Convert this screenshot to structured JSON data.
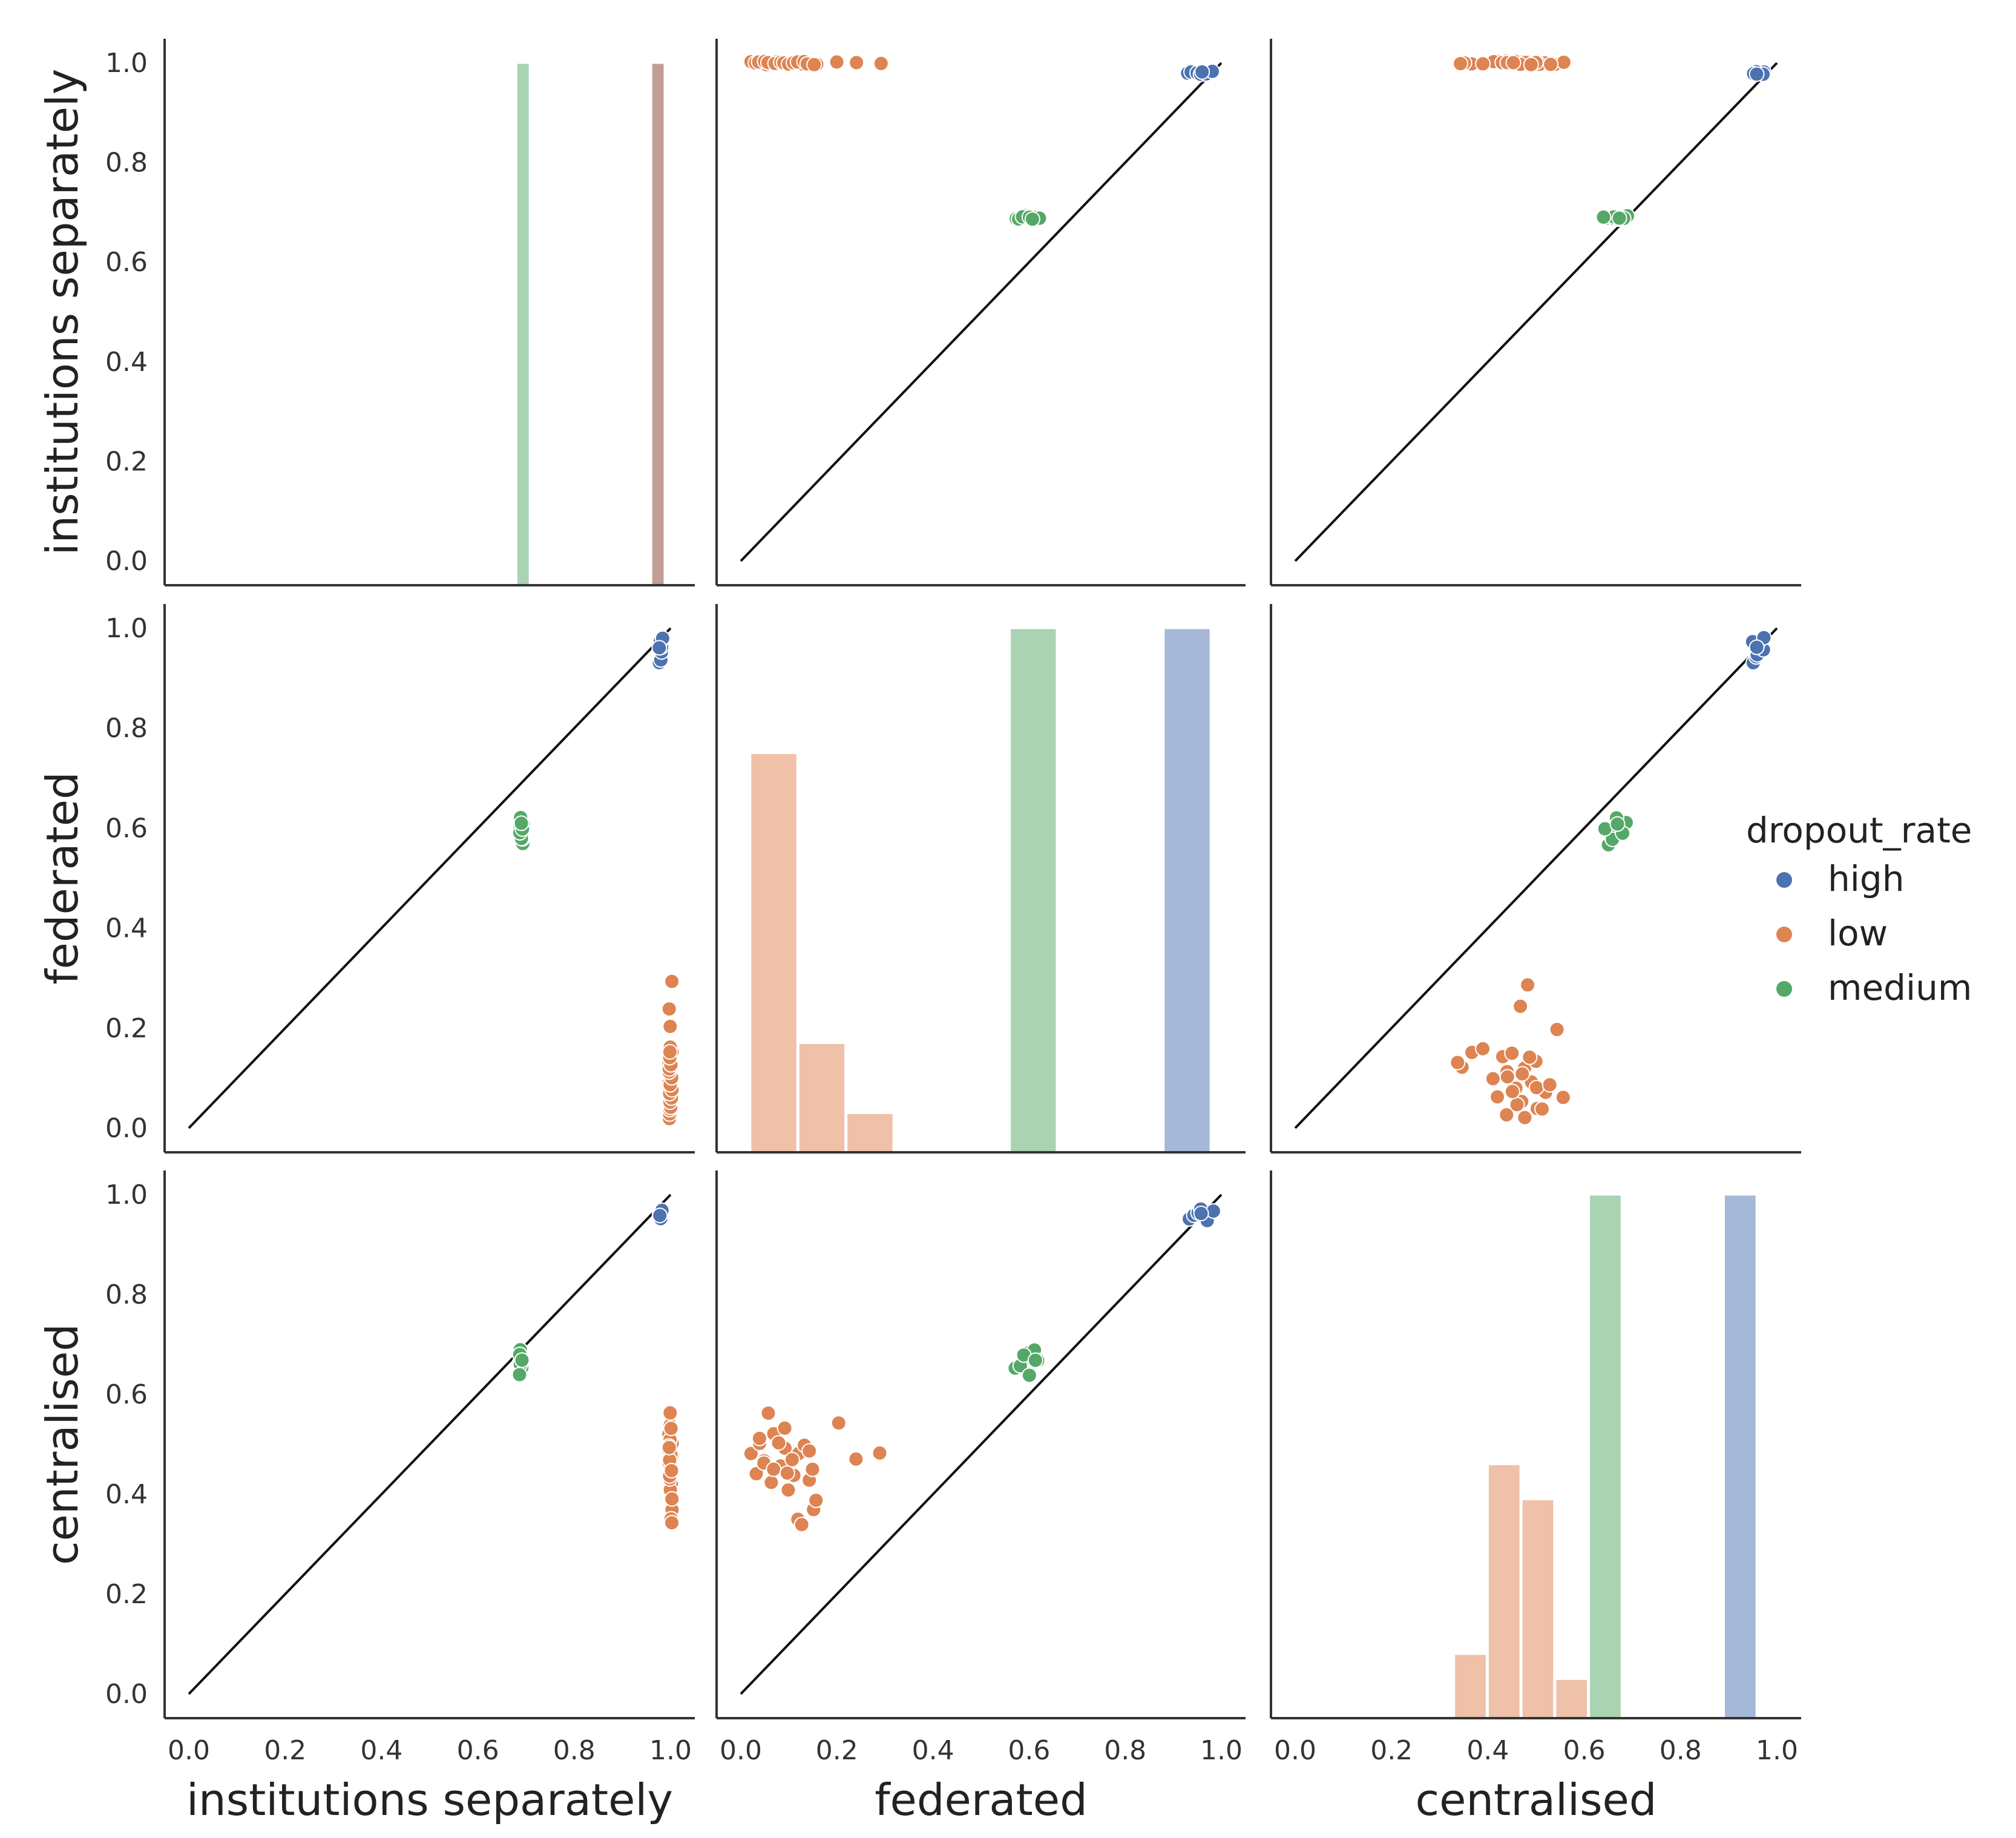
{
  "chart_data": {
    "type": "pairplot",
    "variables": [
      "institutions separately",
      "federated",
      "centralised"
    ],
    "axis_range": [
      0.0,
      1.0
    ],
    "ticks": [
      "0.0",
      "0.2",
      "0.4",
      "0.6",
      "0.8",
      "1.0"
    ],
    "legend": {
      "title": "dropout_rate",
      "placement": "center-right",
      "entries": [
        {
          "label": "high",
          "color": "#4c72b0"
        },
        {
          "label": "low",
          "color": "#dd8452"
        },
        {
          "label": "medium",
          "color": "#55a868"
        }
      ]
    },
    "reference_line": "y = x (black diagonal)",
    "series": {
      "high": {
        "institutions separately": [
          0.98,
          0.98,
          0.98,
          0.98,
          0.98,
          0.98,
          0.98,
          0.98
        ],
        "federated": [
          0.93,
          0.94,
          0.95,
          0.96,
          0.97,
          0.97,
          0.98,
          0.96
        ],
        "centralised": [
          0.95,
          0.96,
          0.96,
          0.97,
          0.96,
          0.95,
          0.97,
          0.96
        ]
      },
      "low": {
        "institutions separately": [
          1.0,
          1.0,
          1.0,
          1.0,
          1.0,
          1.0,
          1.0,
          1.0,
          1.0,
          1.0,
          1.0,
          1.0,
          1.0,
          1.0,
          1.0,
          1.0,
          1.0,
          1.0,
          1.0,
          1.0,
          1.0,
          1.0,
          1.0,
          1.0,
          1.0,
          1.0,
          1.0,
          1.0,
          1.0,
          1.0
        ],
        "federated": [
          0.02,
          0.03,
          0.04,
          0.05,
          0.06,
          0.07,
          0.08,
          0.09,
          0.1,
          0.11,
          0.12,
          0.13,
          0.14,
          0.15,
          0.16,
          0.2,
          0.24,
          0.29,
          0.04,
          0.05,
          0.06,
          0.07,
          0.08,
          0.09,
          0.1,
          0.11,
          0.12,
          0.13,
          0.14,
          0.15
        ],
        "centralised": [
          0.48,
          0.44,
          0.5,
          0.47,
          0.42,
          0.52,
          0.46,
          0.49,
          0.41,
          0.44,
          0.48,
          0.5,
          0.43,
          0.37,
          0.39,
          0.54,
          0.47,
          0.48,
          0.51,
          0.46,
          0.56,
          0.45,
          0.5,
          0.53,
          0.44,
          0.47,
          0.35,
          0.34,
          0.49,
          0.45
        ]
      },
      "medium": {
        "institutions separately": [
          0.69,
          0.69,
          0.69,
          0.69,
          0.69,
          0.69,
          0.69,
          0.69,
          0.69,
          0.69
        ],
        "federated": [
          0.57,
          0.58,
          0.59,
          0.6,
          0.61,
          0.62,
          0.58,
          0.59,
          0.6,
          0.61
        ],
        "centralised": [
          0.65,
          0.66,
          0.67,
          0.68,
          0.69,
          0.67,
          0.66,
          0.68,
          0.64,
          0.67
        ]
      }
    },
    "histograms": {
      "institutions separately": [
        {
          "range": [
            0.68,
            0.71
          ],
          "height": 1.0,
          "color": "#55a868"
        },
        {
          "range": [
            0.96,
            0.99
          ],
          "height": 1.0,
          "color": "#4c72b0"
        },
        {
          "range": [
            0.96,
            0.99
          ],
          "height": 1.0,
          "color": "#dd8452"
        }
      ],
      "federated": [
        {
          "range": [
            0.02,
            0.12
          ],
          "height": 0.75,
          "color": "#dd8452"
        },
        {
          "range": [
            0.12,
            0.22
          ],
          "height": 0.17,
          "color": "#dd8452"
        },
        {
          "range": [
            0.22,
            0.32
          ],
          "height": 0.03,
          "color": "#dd8452"
        },
        {
          "range": [
            0.56,
            0.66
          ],
          "height": 1.0,
          "color": "#55a868"
        },
        {
          "range": [
            0.88,
            0.98
          ],
          "height": 1.0,
          "color": "#4c72b0"
        }
      ],
      "centralised": [
        {
          "range": [
            0.33,
            0.4
          ],
          "height": 0.08,
          "color": "#dd8452"
        },
        {
          "range": [
            0.4,
            0.47
          ],
          "height": 0.46,
          "color": "#dd8452"
        },
        {
          "range": [
            0.47,
            0.54
          ],
          "height": 0.39,
          "color": "#dd8452"
        },
        {
          "range": [
            0.54,
            0.61
          ],
          "height": 0.03,
          "color": "#dd8452"
        },
        {
          "range": [
            0.61,
            0.68
          ],
          "height": 1.0,
          "color": "#55a868"
        },
        {
          "range": [
            0.89,
            0.96
          ],
          "height": 1.0,
          "color": "#4c72b0"
        }
      ]
    }
  }
}
